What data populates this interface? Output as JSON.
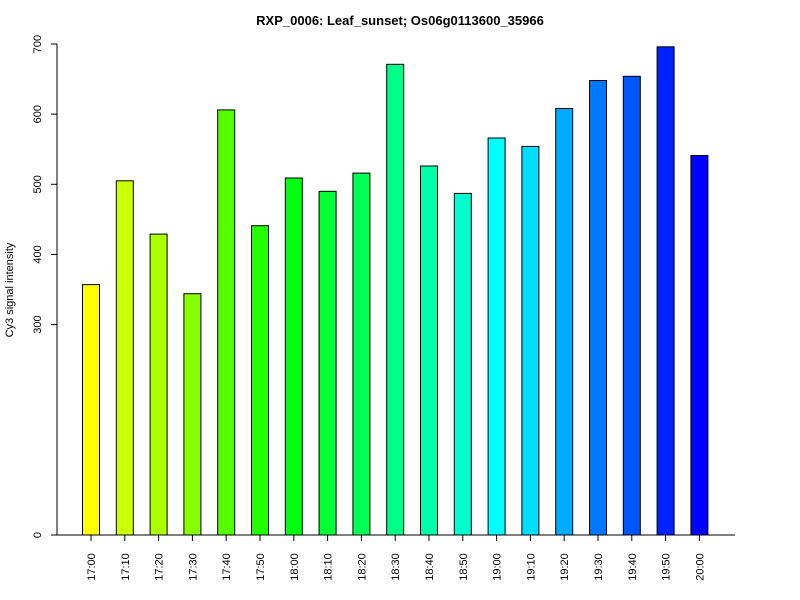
{
  "chart_data": {
    "type": "bar",
    "title": "RXP_0006: Leaf_sunset; Os06g0113600_35966",
    "xlabel": "",
    "ylabel": "Cy3 signal intensity",
    "categories": [
      "17:00",
      "17:10",
      "17:20",
      "17:30",
      "17:40",
      "17:50",
      "18:00",
      "18:10",
      "18:20",
      "18:30",
      "18:40",
      "18:50",
      "19:00",
      "19:10",
      "19:20",
      "19:30",
      "19:40",
      "19:50",
      "20:00"
    ],
    "values": [
      357,
      505,
      429,
      344,
      606,
      441,
      509,
      490,
      516,
      671,
      526,
      487,
      566,
      554,
      608,
      648,
      654,
      696,
      541
    ],
    "colors": [
      "#ffff00",
      "#ccff00",
      "#aaff00",
      "#88ff00",
      "#55ff00",
      "#22ff00",
      "#00ff11",
      "#00ff33",
      "#00ff55",
      "#00ff88",
      "#00ffaa",
      "#00ffcc",
      "#00ffff",
      "#00ddff",
      "#00aaff",
      "#0077ff",
      "#0055ff",
      "#0022ff",
      "#0000ff"
    ],
    "yticks": [
      0,
      300,
      400,
      500,
      600,
      700
    ],
    "ylim": [
      0,
      700
    ],
    "grid": false,
    "legend": "none"
  }
}
